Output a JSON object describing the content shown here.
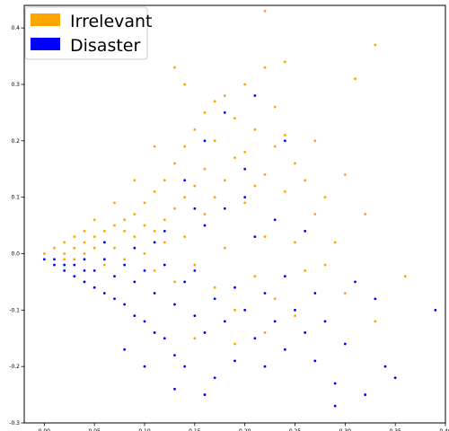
{
  "chart_data": {
    "type": "scatter",
    "title": "",
    "xlabel": "",
    "ylabel": "",
    "xlim": [
      -0.02,
      0.4
    ],
    "ylim": [
      -0.3,
      0.44
    ],
    "grid": false,
    "legend_placement": "top-left",
    "x_ticks": [
      "0.00",
      "0.05",
      "0.10",
      "0.15",
      "0.20",
      "0.25",
      "0.30",
      "0.35",
      "0.40"
    ],
    "y_ticks": [
      "0.4",
      "0.3",
      "0.2",
      "0.1",
      "0.0",
      "-0.1",
      "-0.2",
      "-0.3"
    ],
    "series": [
      {
        "name": "Irrelevant",
        "color": "#FFA500",
        "points": [
          [
            0.0,
            0.0
          ],
          [
            0.01,
            0.01
          ],
          [
            0.02,
            0.0
          ],
          [
            0.02,
            0.02
          ],
          [
            0.03,
            0.01
          ],
          [
            0.03,
            0.03
          ],
          [
            0.04,
            0.0
          ],
          [
            0.04,
            0.02
          ],
          [
            0.05,
            0.03
          ],
          [
            0.05,
            0.01
          ],
          [
            0.06,
            0.04
          ],
          [
            0.06,
            0.02
          ],
          [
            0.06,
            -0.02
          ],
          [
            0.07,
            0.05
          ],
          [
            0.07,
            0.01
          ],
          [
            0.08,
            0.04
          ],
          [
            0.08,
            0.06
          ],
          [
            0.08,
            -0.01
          ],
          [
            0.09,
            0.03
          ],
          [
            0.09,
            0.07
          ],
          [
            0.1,
            0.05
          ],
          [
            0.1,
            0.0
          ],
          [
            0.1,
            0.09
          ],
          [
            0.11,
            0.04
          ],
          [
            0.11,
            0.11
          ],
          [
            0.11,
            -0.03
          ],
          [
            0.12,
            0.06
          ],
          [
            0.12,
            0.13
          ],
          [
            0.12,
            0.02
          ],
          [
            0.13,
            0.08
          ],
          [
            0.13,
            0.16
          ],
          [
            0.13,
            -0.05
          ],
          [
            0.14,
            0.1
          ],
          [
            0.14,
            0.19
          ],
          [
            0.14,
            0.03
          ],
          [
            0.15,
            0.12
          ],
          [
            0.15,
            0.22
          ],
          [
            0.15,
            -0.02
          ],
          [
            0.16,
            0.07
          ],
          [
            0.16,
            0.15
          ],
          [
            0.16,
            0.25
          ],
          [
            0.17,
            0.1
          ],
          [
            0.17,
            0.2
          ],
          [
            0.17,
            -0.06
          ],
          [
            0.18,
            0.13
          ],
          [
            0.18,
            0.28
          ],
          [
            0.18,
            0.01
          ],
          [
            0.19,
            0.17
          ],
          [
            0.19,
            0.24
          ],
          [
            0.19,
            -0.1
          ],
          [
            0.2,
            0.09
          ],
          [
            0.2,
            0.18
          ],
          [
            0.2,
            0.3
          ],
          [
            0.21,
            0.12
          ],
          [
            0.21,
            0.22
          ],
          [
            0.21,
            -0.04
          ],
          [
            0.22,
            0.14
          ],
          [
            0.22,
            0.33
          ],
          [
            0.22,
            0.03
          ],
          [
            0.23,
            0.19
          ],
          [
            0.23,
            0.26
          ],
          [
            0.23,
            -0.08
          ],
          [
            0.24,
            0.11
          ],
          [
            0.24,
            0.21
          ],
          [
            0.25,
            0.16
          ],
          [
            0.25,
            0.02
          ],
          [
            0.26,
            0.13
          ],
          [
            0.26,
            -0.03
          ],
          [
            0.27,
            0.07
          ],
          [
            0.27,
            0.2
          ],
          [
            0.28,
            -0.02
          ],
          [
            0.28,
            0.1
          ],
          [
            0.29,
            0.02
          ],
          [
            0.3,
            0.14
          ],
          [
            0.3,
            -0.07
          ],
          [
            0.31,
            0.31
          ],
          [
            0.32,
            0.07
          ],
          [
            0.33,
            0.37
          ],
          [
            0.33,
            -0.12
          ],
          [
            0.36,
            -0.04
          ],
          [
            0.13,
            0.33
          ],
          [
            0.14,
            0.3
          ],
          [
            0.22,
            0.43
          ],
          [
            0.24,
            0.34
          ],
          [
            0.15,
            -0.15
          ],
          [
            0.19,
            -0.16
          ],
          [
            0.22,
            -0.14
          ],
          [
            0.25,
            -0.11
          ],
          [
            0.17,
            0.27
          ],
          [
            0.11,
            0.19
          ],
          [
            0.09,
            0.13
          ],
          [
            0.07,
            0.09
          ],
          [
            0.05,
            0.06
          ],
          [
            0.04,
            0.04
          ],
          [
            0.03,
            -0.01
          ],
          [
            0.02,
            -0.01
          ]
        ]
      },
      {
        "name": "Disaster",
        "color": "#0000FF",
        "points": [
          [
            0.0,
            -0.01
          ],
          [
            0.01,
            -0.01
          ],
          [
            0.02,
            -0.03
          ],
          [
            0.03,
            -0.02
          ],
          [
            0.03,
            -0.04
          ],
          [
            0.04,
            -0.01
          ],
          [
            0.04,
            -0.05
          ],
          [
            0.05,
            -0.03
          ],
          [
            0.05,
            -0.06
          ],
          [
            0.06,
            -0.01
          ],
          [
            0.06,
            -0.07
          ],
          [
            0.07,
            -0.04
          ],
          [
            0.07,
            -0.08
          ],
          [
            0.08,
            -0.02
          ],
          [
            0.08,
            -0.09
          ],
          [
            0.09,
            -0.05
          ],
          [
            0.09,
            -0.11
          ],
          [
            0.1,
            -0.03
          ],
          [
            0.1,
            -0.12
          ],
          [
            0.11,
            -0.07
          ],
          [
            0.11,
            -0.14
          ],
          [
            0.12,
            -0.02
          ],
          [
            0.12,
            -0.15
          ],
          [
            0.13,
            -0.09
          ],
          [
            0.13,
            -0.18
          ],
          [
            0.14,
            -0.05
          ],
          [
            0.14,
            -0.2
          ],
          [
            0.15,
            -0.11
          ],
          [
            0.15,
            -0.03
          ],
          [
            0.16,
            -0.14
          ],
          [
            0.16,
            0.05
          ],
          [
            0.17,
            -0.08
          ],
          [
            0.17,
            -0.22
          ],
          [
            0.18,
            -0.12
          ],
          [
            0.18,
            0.08
          ],
          [
            0.19,
            -0.06
          ],
          [
            0.19,
            -0.19
          ],
          [
            0.2,
            -0.1
          ],
          [
            0.2,
            0.1
          ],
          [
            0.21,
            -0.15
          ],
          [
            0.21,
            0.03
          ],
          [
            0.22,
            -0.07
          ],
          [
            0.22,
            -0.2
          ],
          [
            0.23,
            -0.12
          ],
          [
            0.23,
            0.06
          ],
          [
            0.24,
            -0.17
          ],
          [
            0.24,
            -0.04
          ],
          [
            0.25,
            -0.1
          ],
          [
            0.26,
            -0.14
          ],
          [
            0.26,
            0.04
          ],
          [
            0.27,
            -0.19
          ],
          [
            0.27,
            -0.07
          ],
          [
            0.28,
            -0.12
          ],
          [
            0.29,
            -0.23
          ],
          [
            0.3,
            -0.16
          ],
          [
            0.31,
            -0.05
          ],
          [
            0.33,
            -0.08
          ],
          [
            0.34,
            -0.2
          ],
          [
            0.35,
            -0.22
          ],
          [
            0.39,
            -0.1
          ],
          [
            0.29,
            -0.27
          ],
          [
            0.32,
            -0.25
          ],
          [
            0.16,
            -0.25
          ],
          [
            0.13,
            -0.24
          ],
          [
            0.1,
            -0.2
          ],
          [
            0.08,
            -0.17
          ],
          [
            0.12,
            0.04
          ],
          [
            0.14,
            0.13
          ],
          [
            0.16,
            0.2
          ],
          [
            0.18,
            0.25
          ],
          [
            0.21,
            0.28
          ],
          [
            0.24,
            0.2
          ],
          [
            0.2,
            0.15
          ],
          [
            0.15,
            0.08
          ],
          [
            0.11,
            0.02
          ],
          [
            0.09,
            0.01
          ],
          [
            0.06,
            0.02
          ],
          [
            0.04,
            -0.03
          ],
          [
            0.02,
            -0.02
          ],
          [
            0.01,
            -0.02
          ]
        ]
      }
    ]
  }
}
